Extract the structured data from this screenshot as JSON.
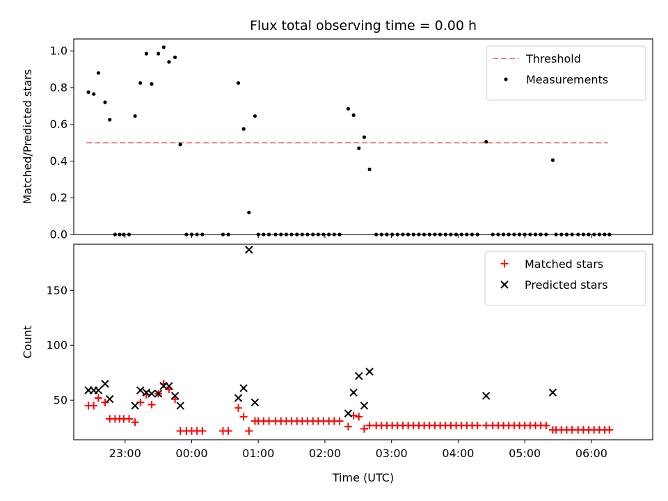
{
  "chart_data": {
    "type": "scatter",
    "title": "Flux total observing time = 0.00 h",
    "xlabel": "Time (UTC)",
    "xlim": [
      22.23,
      30.92
    ],
    "x_ticks": [
      {
        "v": 23,
        "label": "23:00"
      },
      {
        "v": 24,
        "label": "00:00"
      },
      {
        "v": 25,
        "label": "01:00"
      },
      {
        "v": 26,
        "label": "02:00"
      },
      {
        "v": 27,
        "label": "03:00"
      },
      {
        "v": 28,
        "label": "04:00"
      },
      {
        "v": 29,
        "label": "05:00"
      },
      {
        "v": 30,
        "label": "06:00"
      }
    ],
    "panels": [
      {
        "ylabel": "Matched/Predicted stars",
        "ylim": [
          0,
          1.065
        ],
        "y_ticks": [
          {
            "v": 0.0,
            "label": "0.0"
          },
          {
            "v": 0.2,
            "label": "0.2"
          },
          {
            "v": 0.4,
            "label": "0.4"
          },
          {
            "v": 0.6,
            "label": "0.6"
          },
          {
            "v": 0.8,
            "label": "0.8"
          },
          {
            "v": 1.0,
            "label": "1.0"
          }
        ],
        "legend_position": "top-right",
        "threshold": {
          "name": "Threshold",
          "value": 0.5,
          "x_range": [
            22.42,
            30.25
          ],
          "color": "#f08080"
        },
        "series": [
          {
            "name": "Measurements",
            "marker": "dot",
            "color": "#000000",
            "points": [
              [
                22.45,
                0.775
              ],
              [
                22.53,
                0.765
              ],
              [
                22.6,
                0.88
              ],
              [
                22.7,
                0.72
              ],
              [
                22.77,
                0.625
              ],
              [
                23.15,
                0.645
              ],
              [
                23.23,
                0.825
              ],
              [
                23.32,
                0.985
              ],
              [
                23.4,
                0.82
              ],
              [
                23.5,
                0.985
              ],
              [
                23.58,
                1.02
              ],
              [
                23.66,
                0.94
              ],
              [
                23.75,
                0.965
              ],
              [
                23.83,
                0.49
              ],
              [
                24.7,
                0.825
              ],
              [
                24.78,
                0.575
              ],
              [
                24.86,
                0.12
              ],
              [
                24.95,
                0.645
              ],
              [
                26.35,
                0.685
              ],
              [
                26.43,
                0.65
              ],
              [
                26.51,
                0.47
              ],
              [
                26.59,
                0.53
              ],
              [
                26.67,
                0.355
              ],
              [
                28.42,
                0.505
              ],
              [
                29.42,
                0.405
              ],
              [
                22.85,
                0.0
              ],
              [
                22.92,
                0.0
              ],
              [
                22.98,
                0.0
              ],
              [
                23.06,
                0.0
              ],
              [
                23.92,
                0.0
              ],
              [
                24.0,
                0.0
              ],
              [
                24.08,
                0.0
              ],
              [
                24.16,
                0.0
              ],
              [
                24.47,
                0.0
              ],
              [
                24.55,
                0.0
              ],
              [
                25.0,
                0.0
              ],
              [
                25.08,
                0.0
              ],
              [
                25.16,
                0.0
              ],
              [
                25.26,
                0.0
              ],
              [
                25.34,
                0.0
              ],
              [
                25.42,
                0.0
              ],
              [
                25.5,
                0.0
              ],
              [
                25.58,
                0.0
              ],
              [
                25.66,
                0.0
              ],
              [
                25.74,
                0.0
              ],
              [
                25.82,
                0.0
              ],
              [
                25.9,
                0.0
              ],
              [
                25.98,
                0.0
              ],
              [
                26.06,
                0.0
              ],
              [
                26.14,
                0.0
              ],
              [
                26.22,
                0.0
              ],
              [
                26.77,
                0.0
              ],
              [
                26.85,
                0.0
              ],
              [
                26.93,
                0.0
              ],
              [
                27.01,
                0.0
              ],
              [
                27.09,
                0.0
              ],
              [
                27.17,
                0.0
              ],
              [
                27.25,
                0.0
              ],
              [
                27.33,
                0.0
              ],
              [
                27.41,
                0.0
              ],
              [
                27.49,
                0.0
              ],
              [
                27.57,
                0.0
              ],
              [
                27.65,
                0.0
              ],
              [
                27.73,
                0.0
              ],
              [
                27.81,
                0.0
              ],
              [
                27.89,
                0.0
              ],
              [
                27.97,
                0.0
              ],
              [
                28.05,
                0.0
              ],
              [
                28.13,
                0.0
              ],
              [
                28.21,
                0.0
              ],
              [
                28.29,
                0.0
              ],
              [
                28.52,
                0.0
              ],
              [
                28.6,
                0.0
              ],
              [
                28.68,
                0.0
              ],
              [
                28.76,
                0.0
              ],
              [
                28.84,
                0.0
              ],
              [
                28.92,
                0.0
              ],
              [
                29.0,
                0.0
              ],
              [
                29.08,
                0.0
              ],
              [
                29.16,
                0.0
              ],
              [
                29.24,
                0.0
              ],
              [
                29.32,
                0.0
              ],
              [
                29.47,
                0.0
              ],
              [
                29.55,
                0.0
              ],
              [
                29.63,
                0.0
              ],
              [
                29.71,
                0.0
              ],
              [
                29.8,
                0.0
              ],
              [
                29.88,
                0.0
              ],
              [
                29.96,
                0.0
              ],
              [
                30.04,
                0.0
              ],
              [
                30.12,
                0.0
              ],
              [
                30.2,
                0.0
              ],
              [
                30.27,
                0.0
              ]
            ]
          }
        ]
      },
      {
        "ylabel": "Count",
        "ylim": [
          14,
          192
        ],
        "y_ticks": [
          {
            "v": 50,
            "label": "50"
          },
          {
            "v": 100,
            "label": "100"
          },
          {
            "v": 150,
            "label": "150"
          }
        ],
        "legend_position": "top-right",
        "series": [
          {
            "name": "Matched stars",
            "marker": "plus",
            "color": "#ff0000",
            "points": [
              [
                22.45,
                45
              ],
              [
                22.53,
                45
              ],
              [
                22.6,
                52
              ],
              [
                22.7,
                48
              ],
              [
                22.77,
                33
              ],
              [
                22.85,
                33
              ],
              [
                22.92,
                33
              ],
              [
                22.98,
                33
              ],
              [
                23.06,
                33
              ],
              [
                23.15,
                30
              ],
              [
                23.23,
                48
              ],
              [
                23.32,
                55
              ],
              [
                23.4,
                46
              ],
              [
                23.5,
                56
              ],
              [
                23.58,
                65
              ],
              [
                23.66,
                60
              ],
              [
                23.75,
                51
              ],
              [
                23.83,
                22
              ],
              [
                23.92,
                22
              ],
              [
                24.0,
                22
              ],
              [
                24.08,
                22
              ],
              [
                24.16,
                22
              ],
              [
                24.47,
                22
              ],
              [
                24.55,
                22
              ],
              [
                24.7,
                43
              ],
              [
                24.78,
                35
              ],
              [
                24.86,
                22
              ],
              [
                24.95,
                31
              ],
              [
                25.0,
                31
              ],
              [
                25.08,
                31
              ],
              [
                25.16,
                31
              ],
              [
                25.26,
                31
              ],
              [
                25.34,
                31
              ],
              [
                25.42,
                31
              ],
              [
                25.5,
                31
              ],
              [
                25.58,
                31
              ],
              [
                25.66,
                31
              ],
              [
                25.74,
                31
              ],
              [
                25.82,
                31
              ],
              [
                25.9,
                31
              ],
              [
                25.98,
                31
              ],
              [
                26.06,
                31
              ],
              [
                26.14,
                31
              ],
              [
                26.22,
                31
              ],
              [
                26.35,
                26
              ],
              [
                26.43,
                36
              ],
              [
                26.51,
                35
              ],
              [
                26.59,
                24
              ],
              [
                26.67,
                27
              ],
              [
                26.77,
                27
              ],
              [
                26.85,
                27
              ],
              [
                26.93,
                27
              ],
              [
                27.01,
                27
              ],
              [
                27.09,
                27
              ],
              [
                27.17,
                27
              ],
              [
                27.25,
                27
              ],
              [
                27.33,
                27
              ],
              [
                27.41,
                27
              ],
              [
                27.49,
                27
              ],
              [
                27.57,
                27
              ],
              [
                27.65,
                27
              ],
              [
                27.73,
                27
              ],
              [
                27.81,
                27
              ],
              [
                27.89,
                27
              ],
              [
                27.97,
                27
              ],
              [
                28.05,
                27
              ],
              [
                28.13,
                27
              ],
              [
                28.21,
                27
              ],
              [
                28.29,
                27
              ],
              [
                28.42,
                27
              ],
              [
                28.52,
                27
              ],
              [
                28.6,
                27
              ],
              [
                28.68,
                27
              ],
              [
                28.76,
                27
              ],
              [
                28.84,
                27
              ],
              [
                28.92,
                27
              ],
              [
                29.0,
                27
              ],
              [
                29.08,
                27
              ],
              [
                29.16,
                27
              ],
              [
                29.24,
                27
              ],
              [
                29.32,
                27
              ],
              [
                29.42,
                23
              ],
              [
                29.47,
                23
              ],
              [
                29.55,
                23
              ],
              [
                29.63,
                23
              ],
              [
                29.71,
                23
              ],
              [
                29.8,
                23
              ],
              [
                29.88,
                23
              ],
              [
                29.96,
                23
              ],
              [
                30.04,
                23
              ],
              [
                30.12,
                23
              ],
              [
                30.2,
                23
              ],
              [
                30.27,
                23
              ]
            ]
          },
          {
            "name": "Predicted stars",
            "marker": "x",
            "color": "#000000",
            "points": [
              [
                22.45,
                59
              ],
              [
                22.53,
                59
              ],
              [
                22.6,
                59
              ],
              [
                22.7,
                65
              ],
              [
                22.77,
                51
              ],
              [
                23.15,
                45
              ],
              [
                23.23,
                59
              ],
              [
                23.32,
                57
              ],
              [
                23.4,
                56
              ],
              [
                23.5,
                56
              ],
              [
                23.58,
                63
              ],
              [
                23.66,
                63
              ],
              [
                23.75,
                54
              ],
              [
                23.83,
                45
              ],
              [
                24.7,
                52
              ],
              [
                24.78,
                61
              ],
              [
                24.86,
                187
              ],
              [
                24.95,
                48
              ],
              [
                26.35,
                38
              ],
              [
                26.43,
                57
              ],
              [
                26.51,
                72
              ],
              [
                26.59,
                45
              ],
              [
                26.67,
                76
              ],
              [
                28.42,
                54
              ],
              [
                29.42,
                57
              ]
            ]
          }
        ]
      }
    ]
  }
}
